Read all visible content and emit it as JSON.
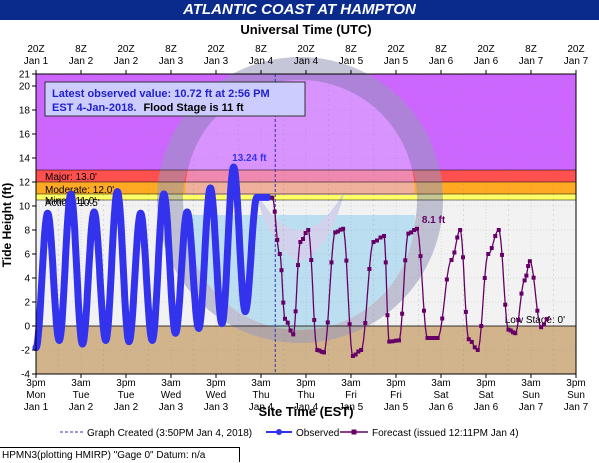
{
  "title": "ATLANTIC COAST AT HAMPTON",
  "top_axis_title": "Universal Time (UTC)",
  "bottom_axis_title": "Site Time (EST)",
  "y_axis_title": "Tide Height (ft)",
  "info_box": {
    "line1": "Latest observed value: 10.72 ft at 2:56 PM",
    "line2a": "EST 4-Jan-2018.",
    "line2b": "Flood Stage is 11 ft"
  },
  "footer": "HPMN3(plotting HMIRP) \"Gage 0\" Datum: n/a",
  "legend": {
    "created": "Graph Created (3:50PM Jan 4, 2018)",
    "observed": "Observed",
    "forecast": "Forecast (issued 12:11PM Jan 4)"
  },
  "colors": {
    "major": "#cc66ff",
    "moderate": "#ff5050",
    "minor": "#ffaa22",
    "action": "#ffff66",
    "plot_bg": "#f2f2f2",
    "low": "#d2b48c",
    "observed": "#3333ee",
    "forecast": "#660066",
    "title_bg": "#0a2a8c"
  },
  "chart_data": {
    "type": "line",
    "y_ticks": [
      "-4",
      "-2",
      "0",
      "2",
      "4",
      "6",
      "8",
      "10",
      "12",
      "14",
      "16",
      "18",
      "20",
      "21"
    ],
    "ylim": [
      -4,
      21
    ],
    "x_range_hours": [
      0,
      144
    ],
    "top_ticks": [
      {
        "t": "20Z",
        "d": "Jan 1"
      },
      {
        "t": "8Z",
        "d": "Jan 2"
      },
      {
        "t": "20Z",
        "d": "Jan 2"
      },
      {
        "t": "8Z",
        "d": "Jan 3"
      },
      {
        "t": "20Z",
        "d": "Jan 3"
      },
      {
        "t": "8Z",
        "d": "Jan 4"
      },
      {
        "t": "20Z",
        "d": "Jan 4"
      },
      {
        "t": "8Z",
        "d": "Jan 5"
      },
      {
        "t": "20Z",
        "d": "Jan 5"
      },
      {
        "t": "8Z",
        "d": "Jan 6"
      },
      {
        "t": "20Z",
        "d": "Jan 6"
      },
      {
        "t": "8Z",
        "d": "Jan 7"
      },
      {
        "t": "20Z",
        "d": "Jan 7"
      }
    ],
    "bottom_ticks": [
      {
        "t": "3pm",
        "w": "Mon",
        "d": "Jan 1"
      },
      {
        "t": "3am",
        "w": "Tue",
        "d": "Jan 2"
      },
      {
        "t": "3pm",
        "w": "Tue",
        "d": "Jan 2"
      },
      {
        "t": "3am",
        "w": "Wed",
        "d": "Jan 3"
      },
      {
        "t": "3pm",
        "w": "Wed",
        "d": "Jan 3"
      },
      {
        "t": "3am",
        "w": "Thu",
        "d": "Jan 4"
      },
      {
        "t": "3pm",
        "w": "Thu",
        "d": "Jan 4"
      },
      {
        "t": "3am",
        "w": "Fri",
        "d": "Jan 5"
      },
      {
        "t": "3pm",
        "w": "Fri",
        "d": "Jan 5"
      },
      {
        "t": "3am",
        "w": "Sat",
        "d": "Jan 6"
      },
      {
        "t": "3pm",
        "w": "Sat",
        "d": "Jan 6"
      },
      {
        "t": "3am",
        "w": "Sun",
        "d": "Jan 7"
      },
      {
        "t": "3pm",
        "w": "Sun",
        "d": "Jan 7"
      }
    ],
    "stages": [
      {
        "name": "Major",
        "label": "Major: 13.0'",
        "value": 13.0
      },
      {
        "name": "Moderate",
        "label": "Moderate: 12.0'",
        "value": 12.0
      },
      {
        "name": "Minor",
        "label": "Minor: 11.0'",
        "value": 11.0
      },
      {
        "name": "Action",
        "label": "Action: 10.5'",
        "value": 10.5
      },
      {
        "name": "Low",
        "label": "Low Stage: 0'",
        "value": 0
      }
    ],
    "peak_labels": [
      {
        "text": "13.24 ft",
        "x": 56.9,
        "y": 13.24
      },
      {
        "text": "8.1 ft",
        "x": 106,
        "y": 8.1
      }
    ],
    "graph_created_x": 63.8,
    "observed": {
      "name": "Observed",
      "x": [
        0,
        3.1,
        6.2,
        9.3,
        12.4,
        15.5,
        18.6,
        21.7,
        24.8,
        27.9,
        31,
        34.1,
        37.2,
        40.3,
        43.4,
        46.5,
        49.6,
        52.7,
        55.8,
        58.9,
        61.8
      ],
      "y": [
        -1.8,
        9.4,
        -1.2,
        11.0,
        -1.5,
        9.5,
        -1.2,
        11.2,
        -1.3,
        9.4,
        -1.2,
        11.0,
        -0.6,
        9.5,
        -0.2,
        11.5,
        0.2,
        13.24,
        1.2,
        10.72,
        10.72
      ]
    },
    "forecast": {
      "name": "Forecast (issued 12:11PM Jan 4)",
      "x": [
        63,
        65,
        66.4,
        68.6,
        70.5,
        72.6,
        75,
        76.8,
        79.8,
        81.9,
        84.5,
        86.7,
        90,
        92.8,
        94.2,
        96.8,
        99.3,
        101.6,
        104.4,
        107.1,
        110.8,
        113.1,
        115.4,
        117.8,
        120.6,
        123.4,
        126,
        127.8,
        130.3,
        131.7,
        134.7,
        137
      ],
      "y": [
        10.7,
        6.0,
        0.6,
        -0.7,
        7.0,
        8.0,
        -2.0,
        -2.2,
        7.8,
        8.1,
        -2.5,
        -2.0,
        7.0,
        7.5,
        -1.3,
        -1.2,
        7.7,
        8.1,
        -1.0,
        -1.0,
        5.5,
        8.0,
        -1.1,
        -2.0,
        6.0,
        8.0,
        -0.3,
        -0.6,
        3.8,
        5.4,
        -0.1,
        0.8
      ]
    }
  }
}
